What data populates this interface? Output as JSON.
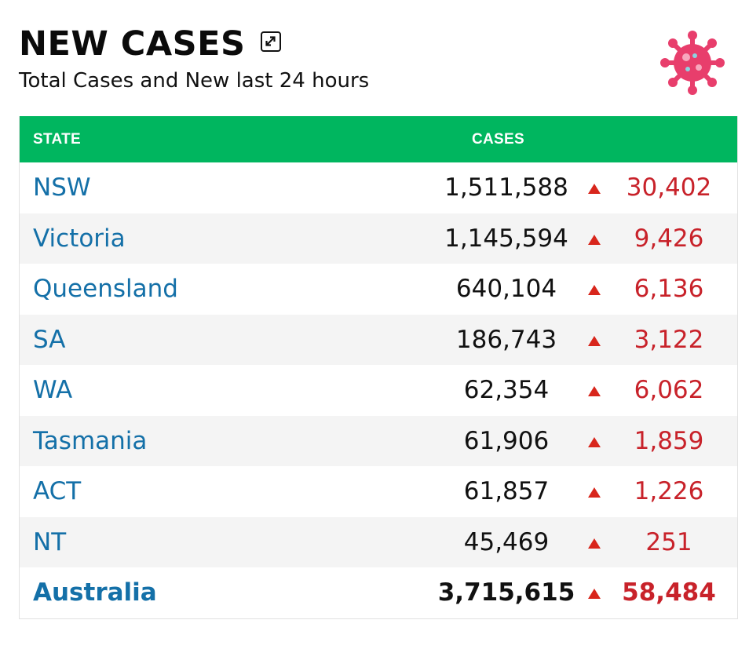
{
  "header": {
    "title": "NEW CASES",
    "subtitle": "Total Cases and New last 24 hours",
    "expand_icon": "expand-icon",
    "logo_icon": "virus-icon"
  },
  "table": {
    "columns": {
      "state": "STATE",
      "cases": "CASES"
    },
    "rows": [
      {
        "state": "NSW",
        "cases": "1,511,588",
        "new": "30,402"
      },
      {
        "state": "Victoria",
        "cases": "1,145,594",
        "new": "9,426"
      },
      {
        "state": "Queensland",
        "cases": "640,104",
        "new": "6,136"
      },
      {
        "state": "SA",
        "cases": "186,743",
        "new": "3,122"
      },
      {
        "state": "WA",
        "cases": "62,354",
        "new": "6,062"
      },
      {
        "state": "Tasmania",
        "cases": "61,906",
        "new": "1,859"
      },
      {
        "state": "ACT",
        "cases": "61,857",
        "new": "1,226"
      },
      {
        "state": "NT",
        "cases": "45,469",
        "new": "251"
      }
    ],
    "total": {
      "state": "Australia",
      "cases": "3,715,615",
      "new": "58,484"
    }
  },
  "colors": {
    "header_green": "#00b65f",
    "state_blue": "#1470a8",
    "increase_red": "#c8222a",
    "virus_pink": "#e83e6c"
  }
}
